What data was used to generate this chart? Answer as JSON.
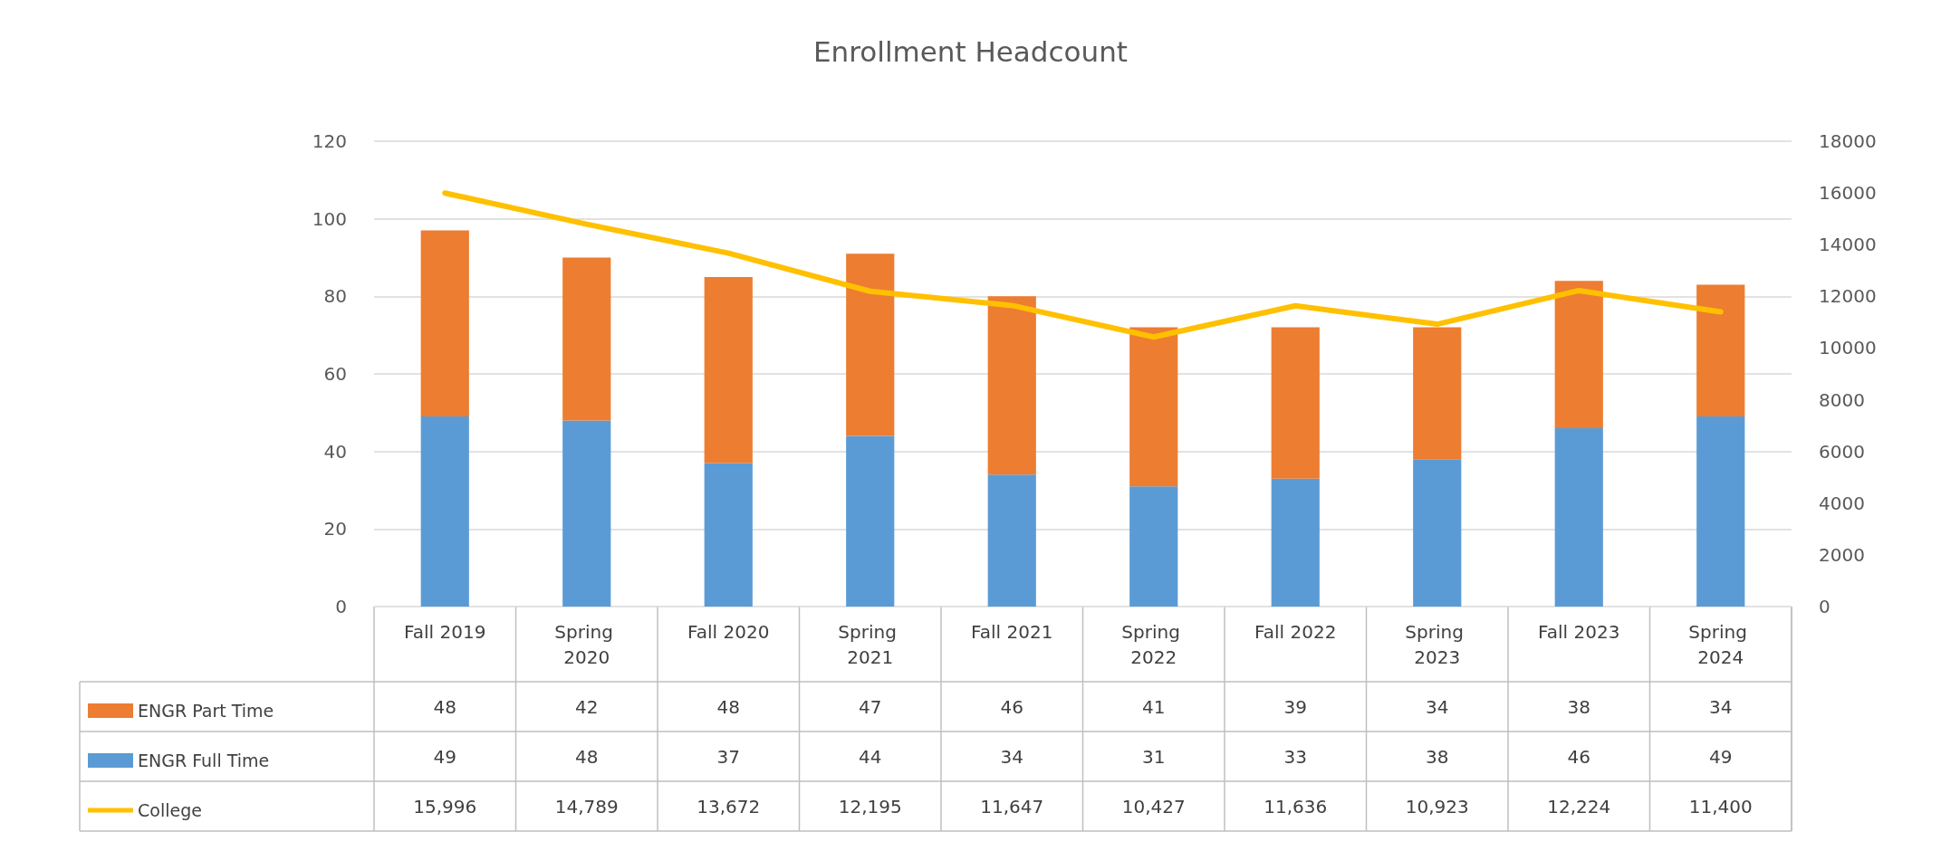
{
  "chart_data": {
    "type": "bar",
    "title": "Enrollment Headcount",
    "categories": [
      "Fall 2019",
      "Spring 2020",
      "Fall 2020",
      "Spring 2021",
      "Fall 2021",
      "Spring 2022",
      "Fall 2022",
      "Spring 2023",
      "Fall 2023",
      "Spring 2024"
    ],
    "stacked": true,
    "series": [
      {
        "name": "ENGR Full Time",
        "color": "#5b9bd5",
        "values": [
          49,
          48,
          37,
          44,
          34,
          31,
          33,
          38,
          46,
          49
        ],
        "value_labels": [
          "49",
          "48",
          "37",
          "44",
          "34",
          "31",
          "33",
          "38",
          "46",
          "49"
        ]
      },
      {
        "name": "ENGR Part Time",
        "color": "#ed7d31",
        "values": [
          48,
          42,
          48,
          47,
          46,
          41,
          39,
          34,
          38,
          34
        ],
        "value_labels": [
          "48",
          "42",
          "48",
          "47",
          "46",
          "41",
          "39",
          "34",
          "38",
          "34"
        ]
      },
      {
        "name": "College",
        "type": "line",
        "axis": "y2",
        "color": "#ffc000",
        "values": [
          15996,
          14789,
          13672,
          12195,
          11647,
          10427,
          11636,
          10923,
          12224,
          11400
        ],
        "value_labels": [
          "15,996",
          "14,789",
          "13,672",
          "12,195",
          "11,647",
          "10,427",
          "11,636",
          "10,923",
          "12,224",
          "11,400"
        ]
      }
    ],
    "ylim": [
      0,
      120
    ],
    "yticks": [
      0,
      20,
      40,
      60,
      80,
      100,
      120
    ],
    "y2lim": [
      0,
      18000
    ],
    "y2ticks": [
      0,
      2000,
      4000,
      6000,
      8000,
      10000,
      12000,
      14000,
      16000,
      18000
    ],
    "grid": "y",
    "legend": "bottom",
    "marker": "none",
    "line_style": "solid"
  }
}
